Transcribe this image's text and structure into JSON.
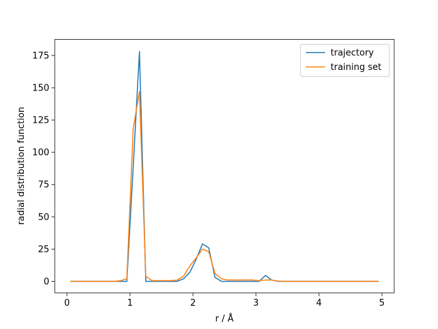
{
  "chart_data": {
    "type": "line",
    "xlabel": "r / Å",
    "ylabel": "radial distribution function",
    "x": [
      0.05,
      0.15,
      0.25,
      0.35,
      0.45,
      0.55,
      0.65,
      0.75,
      0.85,
      0.95,
      1.05,
      1.15,
      1.25,
      1.35,
      1.45,
      1.55,
      1.65,
      1.75,
      1.85,
      1.95,
      2.05,
      2.15,
      2.25,
      2.35,
      2.45,
      2.55,
      2.65,
      2.75,
      2.85,
      2.95,
      3.05,
      3.15,
      3.25,
      3.35,
      3.45,
      3.55,
      3.65,
      3.75,
      3.85,
      3.95,
      4.05,
      4.15,
      4.25,
      4.35,
      4.45,
      4.55,
      4.65,
      4.75,
      4.85,
      4.95
    ],
    "series": [
      {
        "name": "trajectory",
        "color": "#1f77b4",
        "values": [
          0,
          0,
          0,
          0,
          0,
          0,
          0,
          0,
          0,
          0,
          88,
          178,
          0,
          0,
          0,
          0,
          0,
          0,
          2,
          7,
          17,
          29,
          26,
          3,
          0,
          0,
          0,
          0,
          0,
          0,
          0,
          4.5,
          1,
          0,
          0,
          0,
          0,
          0,
          0,
          0,
          0,
          0,
          0,
          0,
          0,
          0,
          0,
          0,
          0,
          0
        ]
      },
      {
        "name": "training set",
        "color": "#ff7f0e",
        "values": [
          0,
          0,
          0,
          0,
          0,
          0,
          0,
          0,
          0.5,
          2,
          118,
          147,
          4,
          0.5,
          0.5,
          0.5,
          0.5,
          1,
          4,
          12,
          18,
          25,
          23,
          6,
          2,
          1,
          1,
          1,
          1,
          1,
          0.5,
          1,
          1,
          0.2,
          0,
          0,
          0,
          0,
          0,
          0,
          0,
          0,
          0,
          0,
          0,
          0,
          0,
          0,
          0,
          0
        ]
      }
    ],
    "xlim": [
      -0.195,
      5.195
    ],
    "xticks": [
      0,
      1,
      2,
      3,
      4,
      5
    ],
    "ylim": [
      -8.9,
      187.4
    ],
    "yticks": [
      0,
      25,
      50,
      75,
      100,
      125,
      150,
      175
    ],
    "legend": "upper right",
    "grid": false
  }
}
